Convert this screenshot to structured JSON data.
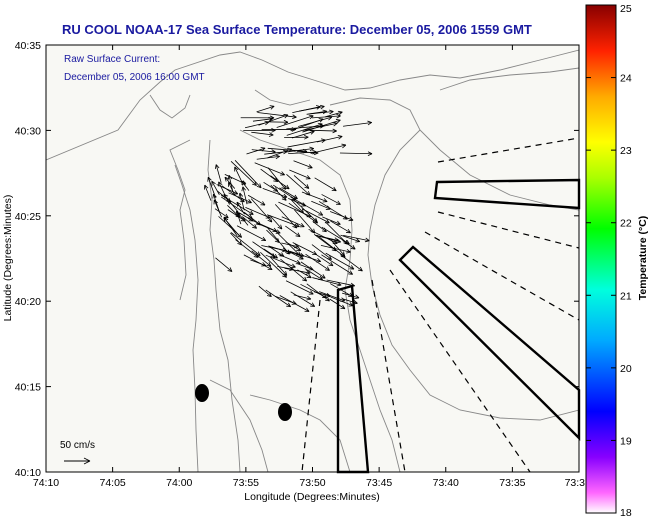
{
  "title": "RU COOL  NOAA-17 Sea Surface Temperature:  December 05, 2006 1559 GMT",
  "current_label_line1": "Raw Surface Current:",
  "current_label_line2": "December 05, 2006 16:00 GMT",
  "scale_label": "50 cm/s",
  "xlabel": "Longitude (Degrees:Minutes)",
  "ylabel": "Latitude (Degrees:Minutes)",
  "colorbar_label": "Temperature (°C)",
  "x_ticks": [
    "74:10",
    "74:05",
    "74:00",
    "73:55",
    "73:50",
    "73:45",
    "73:40",
    "73:35",
    "73:3"
  ],
  "y_ticks": [
    "40:35",
    "40:30",
    "40:25",
    "40:20",
    "40:15",
    "40:10"
  ],
  "colorbar_ticks": [
    "25",
    "24",
    "23",
    "22",
    "21",
    "20",
    "19",
    "18"
  ],
  "colorbar_range": [
    18,
    25
  ],
  "colors": {
    "title": "#1a1aa0",
    "land": "#f8f8f4",
    "contour": "#888888",
    "vector": "#000000"
  }
}
